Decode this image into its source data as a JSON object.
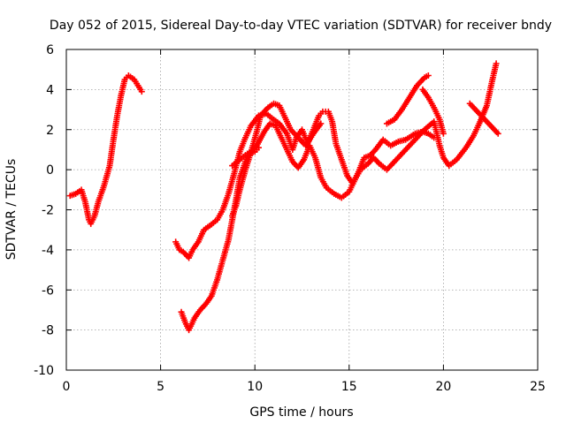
{
  "chart_data": {
    "type": "scatter",
    "title": "Day 052 of 2015, Sidereal Day-to-day VTEC variation (SDTVAR) for receiver bndy",
    "xlabel": "GPS time / hours",
    "ylabel": "SDTVAR / TECUs",
    "xlim": [
      0,
      25
    ],
    "ylim": [
      -10,
      6
    ],
    "x_ticks": [
      0,
      5,
      10,
      15,
      20,
      25
    ],
    "y_ticks": [
      -10,
      -8,
      -6,
      -4,
      -2,
      0,
      2,
      4,
      6
    ],
    "grid": true,
    "marker": "+",
    "marker_color": "#ff0000",
    "series": [
      {
        "segments": [
          [
            [
              0.2,
              -1.3
            ],
            [
              0.5,
              -1.2
            ],
            [
              0.8,
              -1.0
            ],
            [
              1.0,
              -1.6
            ],
            [
              1.2,
              -2.5
            ],
            [
              1.3,
              -2.7
            ],
            [
              1.5,
              -2.3
            ],
            [
              1.7,
              -1.6
            ],
            [
              2.0,
              -0.8
            ],
            [
              2.3,
              0.2
            ],
            [
              2.5,
              1.5
            ],
            [
              2.7,
              2.7
            ],
            [
              2.9,
              3.7
            ],
            [
              3.1,
              4.5
            ],
            [
              3.3,
              4.7
            ],
            [
              3.6,
              4.5
            ],
            [
              3.8,
              4.2
            ],
            [
              4.0,
              3.9
            ]
          ],
          [
            [
              5.8,
              -3.6
            ],
            [
              6.0,
              -4.0
            ],
            [
              6.2,
              -4.1
            ],
            [
              6.5,
              -4.4
            ],
            [
              6.7,
              -4.0
            ],
            [
              7.0,
              -3.6
            ],
            [
              7.3,
              -3.0
            ],
            [
              7.6,
              -2.8
            ],
            [
              8.0,
              -2.5
            ],
            [
              8.3,
              -2.0
            ],
            [
              8.6,
              -1.2
            ],
            [
              8.9,
              -0.2
            ],
            [
              9.2,
              0.9
            ],
            [
              9.5,
              1.6
            ],
            [
              9.8,
              2.2
            ],
            [
              10.2,
              2.7
            ],
            [
              10.6,
              2.8
            ],
            [
              11.0,
              2.5
            ],
            [
              11.3,
              2.3
            ],
            [
              11.7,
              1.8
            ],
            [
              12.0,
              1.0
            ],
            [
              12.2,
              1.6
            ],
            [
              12.5,
              2.0
            ],
            [
              12.8,
              1.3
            ],
            [
              13.1,
              2.0
            ],
            [
              13.4,
              2.7
            ],
            [
              13.6,
              2.9
            ],
            [
              13.9,
              2.9
            ],
            [
              14.1,
              2.4
            ],
            [
              14.3,
              1.3
            ],
            [
              14.6,
              0.5
            ],
            [
              14.9,
              -0.3
            ],
            [
              15.2,
              -0.7
            ],
            [
              15.5,
              -0.1
            ],
            [
              15.8,
              0.6
            ],
            [
              16.1,
              0.7
            ],
            [
              16.4,
              1.0
            ],
            [
              16.8,
              1.5
            ],
            [
              17.2,
              1.2
            ],
            [
              17.6,
              1.4
            ],
            [
              18.0,
              1.5
            ],
            [
              18.5,
              1.8
            ],
            [
              18.9,
              1.9
            ],
            [
              19.2,
              1.8
            ],
            [
              19.5,
              1.6
            ]
          ],
          [
            [
              6.1,
              -7.1
            ],
            [
              6.3,
              -7.6
            ],
            [
              6.5,
              -8.0
            ],
            [
              6.8,
              -7.4
            ],
            [
              7.1,
              -7.0
            ],
            [
              7.4,
              -6.7
            ],
            [
              7.7,
              -6.3
            ],
            [
              8.0,
              -5.5
            ],
            [
              8.3,
              -4.5
            ],
            [
              8.6,
              -3.5
            ],
            [
              8.8,
              -2.5
            ],
            [
              9.0,
              -1.5
            ],
            [
              9.2,
              -0.4
            ],
            [
              9.5,
              0.4
            ],
            [
              9.8,
              0.9
            ],
            [
              10.1,
              1.2
            ],
            [
              10.5,
              1.9
            ],
            [
              10.8,
              2.3
            ],
            [
              11.1,
              2.2
            ],
            [
              11.4,
              1.6
            ],
            [
              11.7,
              1.0
            ],
            [
              12.0,
              0.4
            ],
            [
              12.3,
              0.1
            ],
            [
              12.6,
              0.5
            ],
            [
              12.9,
              1.2
            ],
            [
              13.2,
              0.6
            ],
            [
              13.5,
              -0.4
            ],
            [
              13.8,
              -0.9
            ],
            [
              14.2,
              -1.2
            ],
            [
              14.6,
              -1.4
            ],
            [
              15.0,
              -1.1
            ],
            [
              15.3,
              -0.5
            ],
            [
              15.6,
              0.0
            ],
            [
              16.0,
              0.3
            ],
            [
              16.3,
              0.6
            ],
            [
              16.6,
              0.3
            ],
            [
              17.0,
              0.0
            ],
            [
              17.5,
              0.5
            ],
            [
              18.0,
              1.0
            ],
            [
              18.5,
              1.5
            ],
            [
              19.0,
              2.0
            ],
            [
              19.5,
              2.4
            ],
            [
              19.8,
              1.2
            ],
            [
              20.0,
              0.6
            ],
            [
              20.3,
              0.2
            ],
            [
              20.7,
              0.5
            ],
            [
              21.2,
              1.1
            ],
            [
              21.6,
              1.7
            ],
            [
              21.9,
              2.3
            ],
            [
              22.3,
              3.2
            ],
            [
              22.6,
              4.5
            ],
            [
              22.8,
              5.3
            ]
          ],
          [
            [
              8.8,
              -2.3
            ],
            [
              9.0,
              -1.8
            ],
            [
              9.2,
              -1.0
            ],
            [
              9.5,
              0.0
            ],
            [
              9.8,
              0.9
            ],
            [
              10.1,
              1.9
            ],
            [
              10.3,
              2.7
            ],
            [
              10.7,
              3.1
            ],
            [
              11.0,
              3.3
            ],
            [
              11.3,
              3.2
            ],
            [
              11.6,
              2.6
            ],
            [
              11.9,
              2.0
            ],
            [
              12.3,
              1.6
            ],
            [
              12.7,
              1.2
            ],
            [
              13.1,
              1.8
            ],
            [
              13.5,
              2.3
            ]
          ],
          [
            [
              8.8,
              0.2
            ],
            [
              9.2,
              0.5
            ],
            [
              9.6,
              0.8
            ],
            [
              10.0,
              0.9
            ],
            [
              10.2,
              1.1
            ]
          ],
          [
            [
              17.0,
              2.3
            ],
            [
              17.4,
              2.5
            ],
            [
              17.8,
              3.0
            ],
            [
              18.2,
              3.6
            ],
            [
              18.6,
              4.2
            ],
            [
              19.0,
              4.6
            ],
            [
              19.2,
              4.7
            ]
          ],
          [
            [
              18.9,
              4.0
            ],
            [
              19.2,
              3.6
            ],
            [
              19.5,
              3.1
            ],
            [
              19.8,
              2.5
            ],
            [
              20.0,
              1.8
            ]
          ],
          [
            [
              21.4,
              3.3
            ],
            [
              21.8,
              2.9
            ],
            [
              22.2,
              2.5
            ],
            [
              22.6,
              2.1
            ],
            [
              22.9,
              1.8
            ]
          ]
        ]
      }
    ]
  }
}
